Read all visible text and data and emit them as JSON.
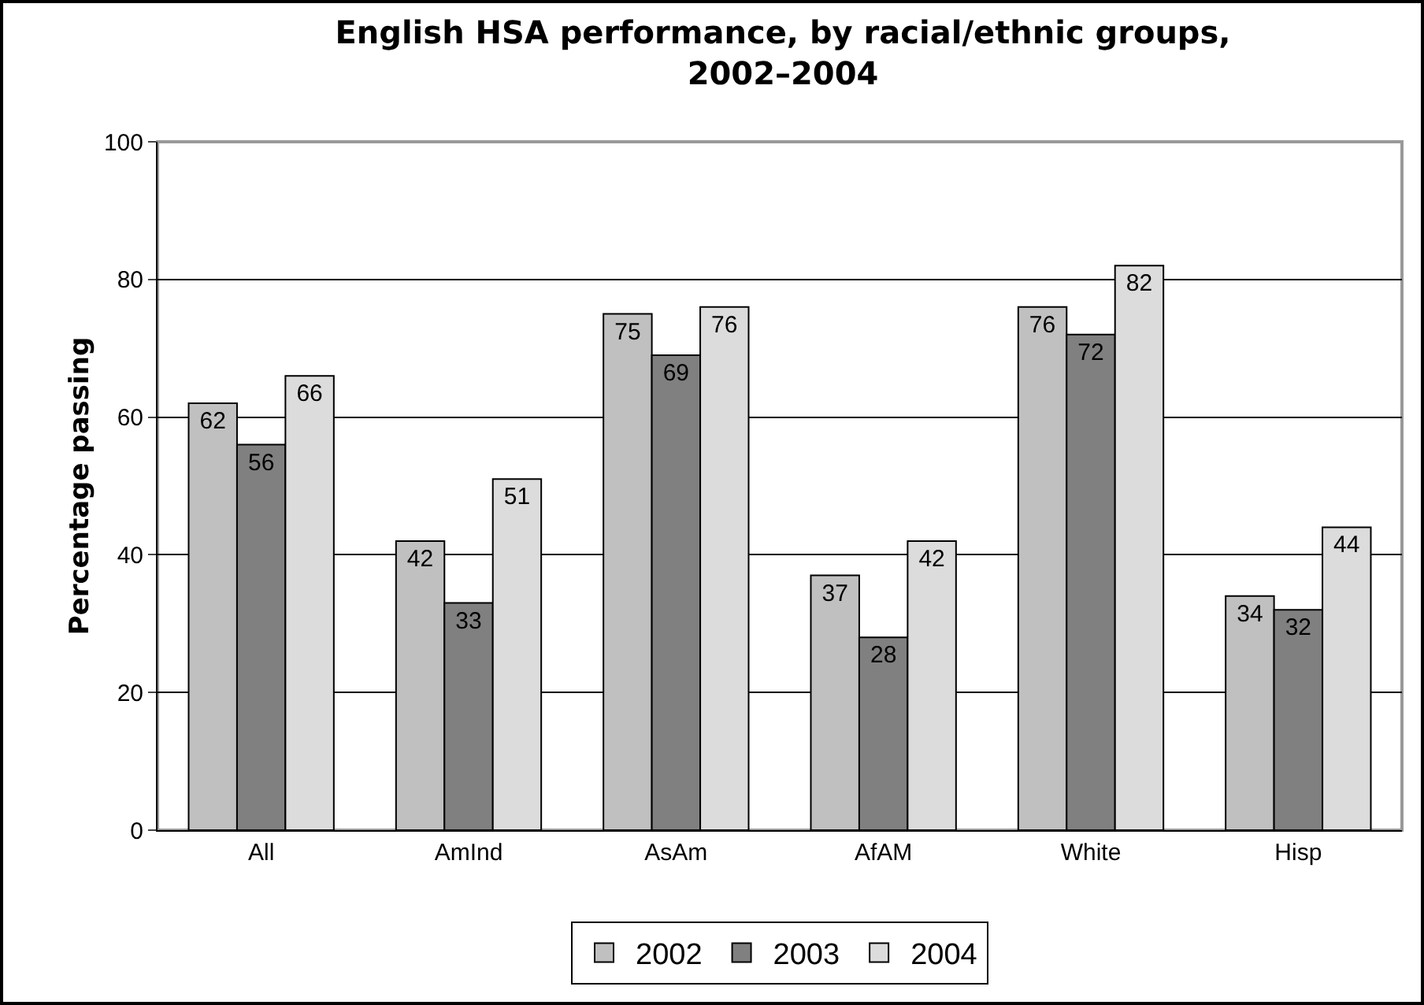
{
  "chart_data": {
    "type": "bar",
    "title": "English HSA performance, by racial/ethnic groups, 2002–2004",
    "ylabel": "Percentage passing",
    "categories": [
      "All",
      "AmInd",
      "AsAm",
      "AfAM",
      "White",
      "Hisp"
    ],
    "series": [
      {
        "name": "2002",
        "color": "#c0c0c0",
        "values": [
          62,
          42,
          75,
          37,
          76,
          34
        ]
      },
      {
        "name": "2003",
        "color": "#808080",
        "values": [
          56,
          33,
          69,
          28,
          72,
          32
        ]
      },
      {
        "name": "2004",
        "color": "#dcdcdc",
        "values": [
          66,
          51,
          76,
          42,
          82,
          44
        ]
      }
    ],
    "ylim": [
      0,
      100
    ],
    "yticks": [
      0,
      20,
      40,
      60,
      80,
      100
    ],
    "grid": "y",
    "legend": "bottom",
    "data_labels": true
  }
}
